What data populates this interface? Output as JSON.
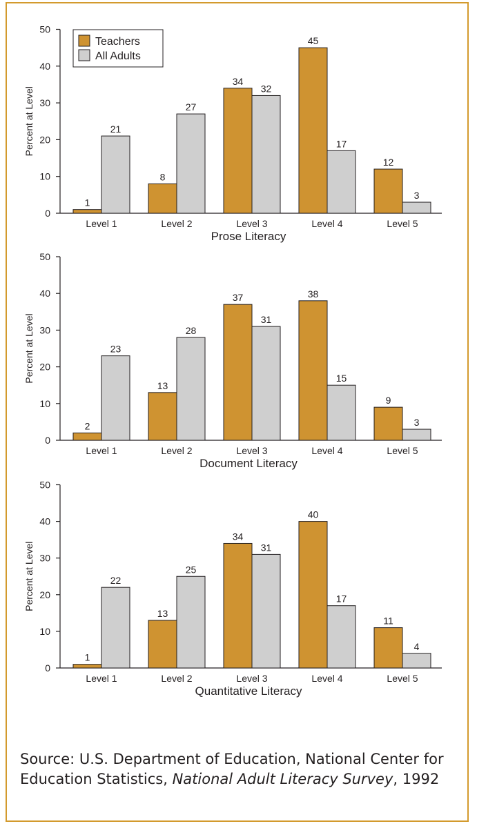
{
  "legend": {
    "items": [
      {
        "label": "Teachers",
        "color": "#cf9331"
      },
      {
        "label": "All Adults",
        "color": "#cfcfcf"
      }
    ]
  },
  "colors": {
    "frame": "#d39a2d",
    "teachers": "#cf9331",
    "adults": "#cfcfcf",
    "text": "#231f20"
  },
  "chart_data": [
    {
      "type": "bar",
      "xlabel": "Prose Literacy",
      "ylabel": "Percent at Level",
      "ylim": [
        0,
        50
      ],
      "yticks": [
        0,
        10,
        20,
        30,
        40,
        50
      ],
      "categories": [
        "Level 1",
        "Level 2",
        "Level 3",
        "Level 4",
        "Level 5"
      ],
      "series": [
        {
          "name": "Teachers",
          "values": [
            1,
            8,
            34,
            45,
            12
          ]
        },
        {
          "name": "All Adults",
          "values": [
            21,
            27,
            32,
            17,
            3
          ]
        }
      ],
      "legend": "top-left"
    },
    {
      "type": "bar",
      "xlabel": "Document Literacy",
      "ylabel": "Percent at Level",
      "ylim": [
        0,
        50
      ],
      "yticks": [
        0,
        10,
        20,
        30,
        40,
        50
      ],
      "categories": [
        "Level 1",
        "Level 2",
        "Level 3",
        "Level 4",
        "Level 5"
      ],
      "series": [
        {
          "name": "Teachers",
          "values": [
            2,
            13,
            37,
            38,
            9
          ]
        },
        {
          "name": "All Adults",
          "values": [
            23,
            28,
            31,
            15,
            3
          ]
        }
      ]
    },
    {
      "type": "bar",
      "xlabel": "Quantitative Literacy",
      "ylabel": "Percent at Level",
      "ylim": [
        0,
        50
      ],
      "yticks": [
        0,
        10,
        20,
        30,
        40,
        50
      ],
      "categories": [
        "Level 1",
        "Level 2",
        "Level 3",
        "Level 4",
        "Level 5"
      ],
      "series": [
        {
          "name": "Teachers",
          "values": [
            1,
            13,
            34,
            40,
            11
          ]
        },
        {
          "name": "All Adults",
          "values": [
            22,
            25,
            31,
            17,
            4
          ]
        }
      ]
    }
  ],
  "source": {
    "prefix": "Source: U.S. Department of Education, National Center for Education Statistics, ",
    "publication": "National Adult Literacy Survey",
    "suffix": ", 1992"
  }
}
